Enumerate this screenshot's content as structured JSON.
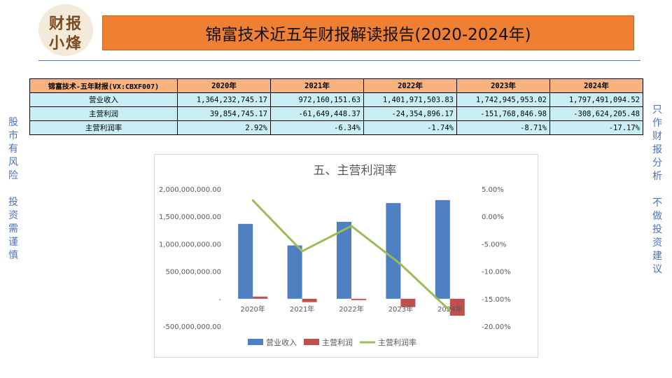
{
  "logo": {
    "line1": "财报",
    "line2": "小烽"
  },
  "header": {
    "title": "锦富技术近五年财报解读报告(2020-2024年)"
  },
  "left_side": [
    "股",
    "市",
    "有",
    "风",
    "险",
    "",
    "投",
    "资",
    "需",
    "谨",
    "慎"
  ],
  "right_side": [
    "只",
    "作",
    "财",
    "报",
    "分",
    "析",
    "",
    "不",
    "做",
    "投",
    "资",
    "建",
    "议"
  ],
  "table": {
    "header": [
      "锦富技术-五年财报(VX:CBXF007)",
      "2020年",
      "2021年",
      "2022年",
      "2023年",
      "2024年"
    ],
    "rows": [
      {
        "label": "营业收入",
        "values": [
          "1,364,232,745.17",
          "972,160,151.63",
          "1,401,971,503.83",
          "1,742,945,953.02",
          "1,797,491,094.52"
        ]
      },
      {
        "label": "主营利润",
        "values": [
          "39,854,745.17",
          "-61,649,448.37",
          "-24,354,896.17",
          "-151,768,846.98",
          "-308,624,205.48"
        ]
      },
      {
        "label": "主营利润率",
        "values": [
          "2.92%",
          "-6.34%",
          "-1.74%",
          "-8.71%",
          "-17.17%"
        ]
      }
    ]
  },
  "chart_data": {
    "type": "bar",
    "title": "五、主营利润率",
    "categories": [
      "2020年",
      "2021年",
      "2022年",
      "2023年",
      "2024年"
    ],
    "series": [
      {
        "name": "营业收入",
        "type": "bar",
        "axis": "left",
        "color": "#4e7fc0",
        "values": [
          1364232745.17,
          972160151.63,
          1401971503.83,
          1742945953.02,
          1797491094.52
        ]
      },
      {
        "name": "主营利润",
        "type": "bar",
        "axis": "left",
        "color": "#c0504d",
        "values": [
          39854745.17,
          -61649448.37,
          -24354896.17,
          -151768846.98,
          -308624205.48
        ]
      },
      {
        "name": "主营利润率",
        "type": "line",
        "axis": "right",
        "color": "#9bbb59",
        "values": [
          2.92,
          -6.34,
          -1.74,
          -8.71,
          -17.17
        ]
      }
    ],
    "y_left": {
      "min": -500000000,
      "max": 2000000000,
      "step": 500000000,
      "tick_labels": [
        "-500,000,000.00",
        "-",
        "500,000,000.00",
        "1,000,000,000.00",
        "1,500,000,000.00",
        "2,000,000,000.00"
      ]
    },
    "y_right": {
      "min": -20,
      "max": 5,
      "step": 5,
      "tick_labels": [
        "-20.00%",
        "-15.00%",
        "-10.00%",
        "-5.00%",
        "0.00%",
        "5.00%"
      ]
    },
    "legend": "bottom",
    "grid": false
  }
}
